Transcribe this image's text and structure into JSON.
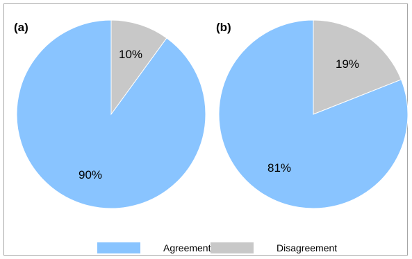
{
  "colors": {
    "agreement": "#89c4ff",
    "disagreement": "#c8c8c8",
    "frame": "#a6a6a6"
  },
  "chart_data": [
    {
      "type": "pie",
      "title": "(a)",
      "slices": [
        {
          "label": "Disagreement",
          "value": 10,
          "text": "10%"
        },
        {
          "label": "Agreement",
          "value": 90,
          "text": "90%"
        }
      ],
      "start_angle_deg": 0,
      "direction": "clockwise"
    },
    {
      "type": "pie",
      "title": "(b)",
      "slices": [
        {
          "label": "Disagreement",
          "value": 19,
          "text": "19%"
        },
        {
          "label": "Agreement",
          "value": 81,
          "text": "81%"
        }
      ],
      "start_angle_deg": 0,
      "direction": "clockwise"
    }
  ],
  "legend": {
    "placement": "bottom",
    "items": [
      {
        "label": "Agreement",
        "color": "#89c4ff"
      },
      {
        "label": "Disagreement",
        "color": "#c8c8c8"
      }
    ]
  }
}
